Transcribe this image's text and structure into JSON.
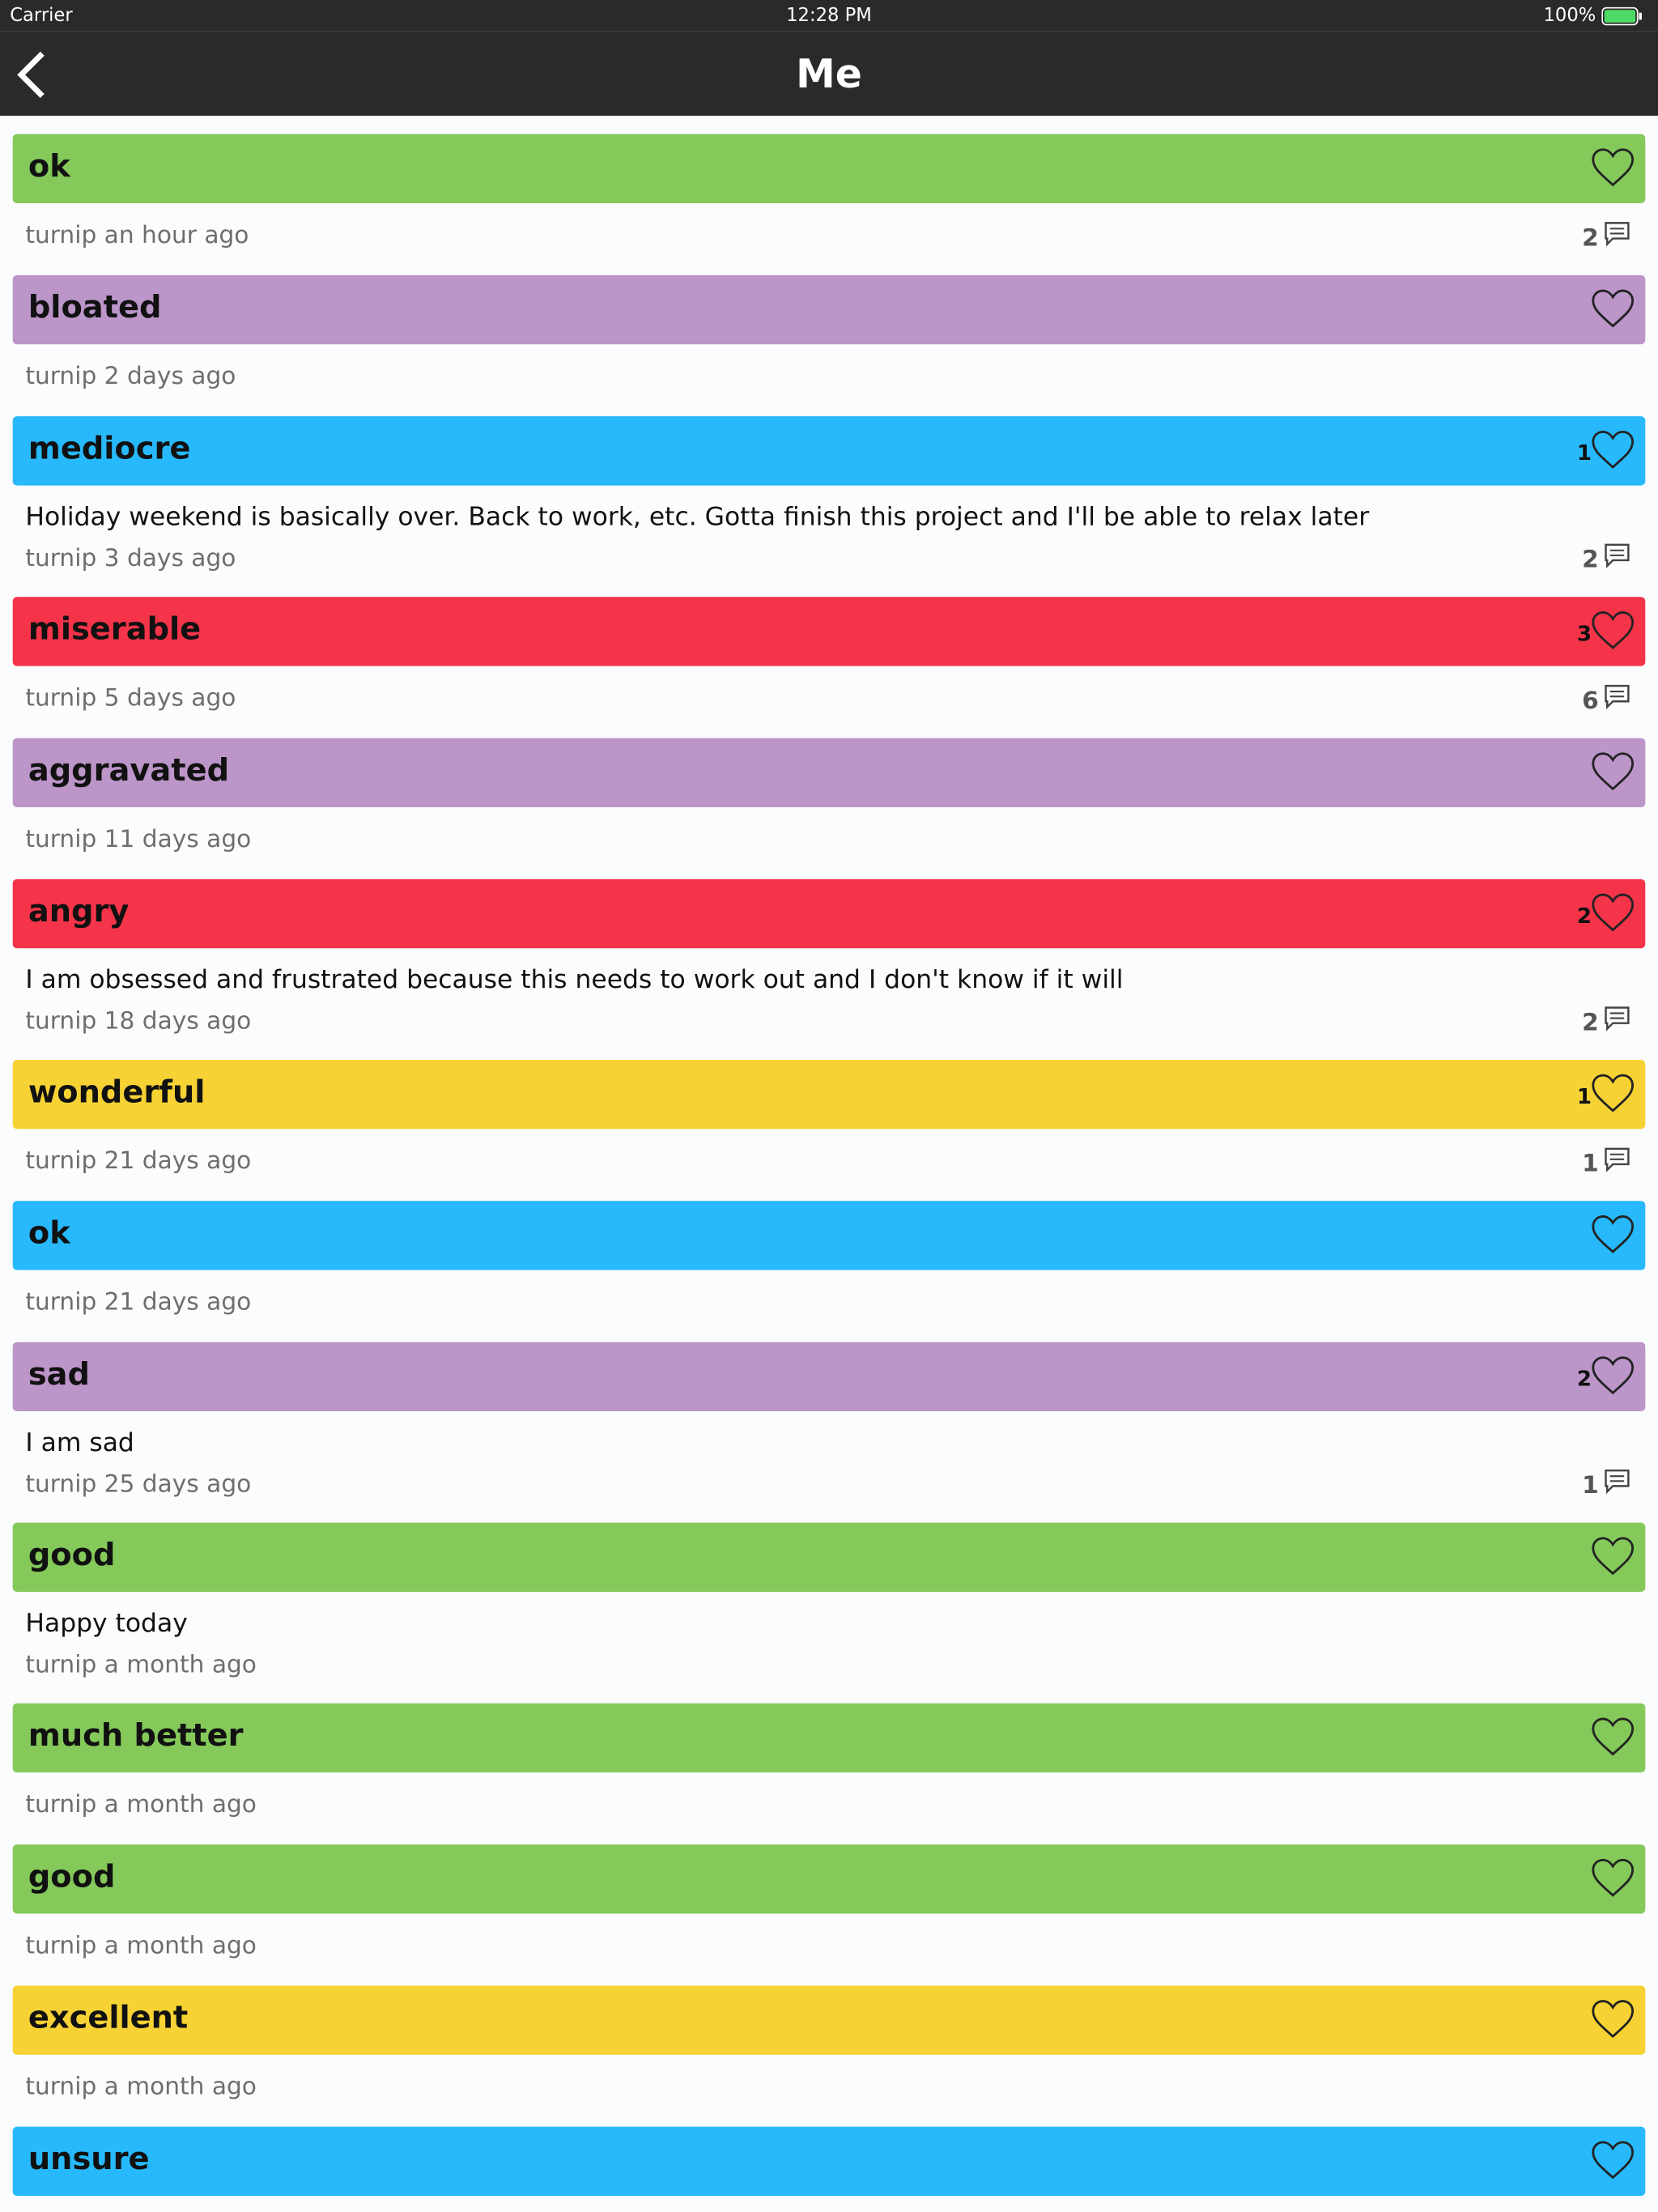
{
  "status_bar": {
    "carrier": "Carrier",
    "time": "12:28 PM",
    "battery": "100%"
  },
  "header": {
    "title": "Me"
  },
  "entries": [
    {
      "mood": "ok",
      "color": "#84c95a",
      "user": "turnip",
      "time": "an hour ago",
      "comments": 2
    },
    {
      "mood": "bloated",
      "color": "#bc95c9",
      "user": "turnip",
      "time": "2 days ago"
    },
    {
      "mood": "mediocre",
      "color": "#27b9fc",
      "likes": 1,
      "note": "Holiday weekend is basically over. Back to work, etc. Gotta finish this project and I'll be able to relax later",
      "user": "turnip",
      "time": "3 days ago",
      "comments": 2
    },
    {
      "mood": "miserable",
      "color": "#f5344a",
      "likes": 3,
      "user": "turnip",
      "time": "5 days ago",
      "comments": 6
    },
    {
      "mood": "aggravated",
      "color": "#bc95c9",
      "user": "turnip",
      "time": "11 days ago"
    },
    {
      "mood": "angry",
      "color": "#f5344a",
      "likes": 2,
      "note": "I am obsessed and frustrated because this needs to work out and I don't know if it will",
      "user": "turnip",
      "time": "18 days ago",
      "comments": 2
    },
    {
      "mood": "wonderful",
      "color": "#f7d234",
      "likes": 1,
      "user": "turnip",
      "time": "21 days ago",
      "comments": 1
    },
    {
      "mood": "ok",
      "color": "#27b9fc",
      "user": "turnip",
      "time": "21 days ago"
    },
    {
      "mood": "sad",
      "color": "#bc95c9",
      "likes": 2,
      "note": "I am sad",
      "user": "turnip",
      "time": "25 days ago",
      "comments": 1
    },
    {
      "mood": "good",
      "color": "#84c95a",
      "note": "Happy today",
      "user": "turnip",
      "time": "a month ago"
    },
    {
      "mood": "much better",
      "color": "#84c95a",
      "user": "turnip",
      "time": "a month ago"
    },
    {
      "mood": "good",
      "color": "#84c95a",
      "user": "turnip",
      "time": "a month ago"
    },
    {
      "mood": "excellent",
      "color": "#f7d234",
      "user": "turnip",
      "time": "a month ago"
    },
    {
      "mood": "unsure",
      "color": "#27b9fc"
    }
  ]
}
